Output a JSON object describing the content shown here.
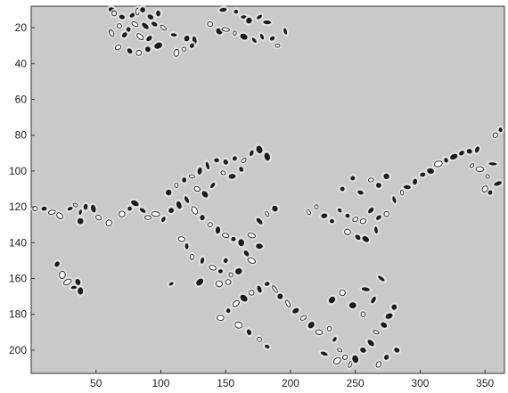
{
  "figure": {
    "x_ticks": [
      "50",
      "100",
      "150",
      "200",
      "250",
      "300",
      "350"
    ],
    "y_ticks": [
      "20",
      "40",
      "60",
      "80",
      "100",
      "120",
      "140",
      "160",
      "180",
      "200"
    ],
    "x_tick_values": [
      50,
      100,
      150,
      200,
      250,
      300,
      350
    ],
    "y_tick_values": [
      20,
      40,
      60,
      80,
      100,
      120,
      140,
      160,
      180,
      200
    ],
    "xlim": [
      0,
      365
    ],
    "ylim": [
      8,
      213
    ],
    "y_axis_inverted": true,
    "colors": {
      "background": "#c9c9c9",
      "dark_blob": "#1a1a1a",
      "light_blob": "#ffffff",
      "halo": "#e3e3e3",
      "frame": "#333333"
    },
    "blob_groups": [
      {
        "name": "top-left-cluster",
        "blobs": [
          [
            62,
            10,
            "d"
          ],
          [
            64,
            12,
            "l"
          ],
          [
            70,
            14,
            "d"
          ],
          [
            78,
            13,
            "d"
          ],
          [
            82,
            11,
            "l"
          ],
          [
            86,
            10,
            "d"
          ],
          [
            92,
            14,
            "d"
          ],
          [
            98,
            12,
            "d"
          ],
          [
            68,
            19,
            "l"
          ],
          [
            75,
            21,
            "d"
          ],
          [
            80,
            18,
            "l"
          ],
          [
            88,
            19,
            "d"
          ],
          [
            95,
            18,
            "d"
          ],
          [
            62,
            23,
            "l"
          ],
          [
            72,
            24,
            "d"
          ],
          [
            84,
            25,
            "l"
          ],
          [
            91,
            26,
            "d"
          ],
          [
            102,
            20,
            "l"
          ],
          [
            110,
            24,
            "d"
          ],
          [
            120,
            26,
            "d"
          ],
          [
            126,
            27,
            "d"
          ],
          [
            67,
            31,
            "l"
          ],
          [
            76,
            33,
            "d"
          ],
          [
            83,
            34,
            "l"
          ],
          [
            90,
            32,
            "d"
          ],
          [
            98,
            30,
            "d"
          ],
          [
            112,
            34,
            "l"
          ],
          [
            118,
            32,
            "l"
          ],
          [
            124,
            30,
            "d"
          ]
        ]
      },
      {
        "name": "top-middle-cluster",
        "blobs": [
          [
            148,
            10,
            "d"
          ],
          [
            158,
            11,
            "d"
          ],
          [
            164,
            14,
            "d"
          ],
          [
            168,
            16,
            "d"
          ],
          [
            176,
            14,
            "d"
          ],
          [
            182,
            17,
            "d"
          ],
          [
            138,
            18,
            "l"
          ],
          [
            145,
            22,
            "d"
          ],
          [
            150,
            21,
            "l"
          ],
          [
            157,
            23,
            "l"
          ],
          [
            164,
            25,
            "d"
          ],
          [
            172,
            27,
            "d"
          ],
          [
            178,
            25,
            "d"
          ],
          [
            186,
            26,
            "d"
          ],
          [
            190,
            30,
            "l"
          ],
          [
            196,
            22,
            "d"
          ]
        ]
      },
      {
        "name": "left-edge-cluster",
        "blobs": [
          [
            3,
            121,
            "l"
          ],
          [
            10,
            121,
            "d"
          ],
          [
            16,
            123,
            "l"
          ],
          [
            22,
            125,
            "l"
          ],
          [
            30,
            121,
            "d"
          ],
          [
            34,
            119,
            "l"
          ],
          [
            38,
            123,
            "d"
          ],
          [
            42,
            120,
            "d"
          ],
          [
            48,
            121,
            "d"
          ],
          [
            52,
            126,
            "l"
          ],
          [
            60,
            129,
            "l"
          ],
          [
            38,
            128,
            "d"
          ],
          [
            20,
            152,
            "d"
          ],
          [
            24,
            158,
            "l"
          ],
          [
            28,
            162,
            "l"
          ],
          [
            33,
            165,
            "d"
          ],
          [
            36,
            162,
            "d"
          ],
          [
            38,
            167,
            "d"
          ]
        ]
      },
      {
        "name": "center-left-cluster",
        "blobs": [
          [
            70,
            124,
            "l"
          ],
          [
            76,
            121,
            "d"
          ],
          [
            80,
            118,
            "d"
          ],
          [
            86,
            122,
            "d"
          ],
          [
            90,
            126,
            "l"
          ],
          [
            96,
            124,
            "l"
          ],
          [
            102,
            127,
            "d"
          ],
          [
            108,
            122,
            "d"
          ],
          [
            114,
            119,
            "d"
          ],
          [
            120,
            116,
            "d"
          ],
          [
            106,
            112,
            "d"
          ],
          [
            112,
            108,
            "l"
          ],
          [
            118,
            105,
            "d"
          ],
          [
            124,
            103,
            "l"
          ],
          [
            130,
            100,
            "d"
          ],
          [
            136,
            97,
            "d"
          ],
          [
            143,
            94,
            "d"
          ],
          [
            150,
            95,
            "d"
          ],
          [
            157,
            93,
            "d"
          ],
          [
            164,
            94,
            "l"
          ],
          [
            170,
            90,
            "d"
          ],
          [
            176,
            88,
            "d"
          ],
          [
            182,
            92,
            "d"
          ],
          [
            148,
            101,
            "l"
          ],
          [
            155,
            103,
            "d"
          ],
          [
            162,
            99,
            "d"
          ],
          [
            128,
            110,
            "l"
          ],
          [
            134,
            113,
            "d"
          ],
          [
            140,
            108,
            "d"
          ],
          [
            126,
            122,
            "l"
          ],
          [
            132,
            126,
            "d"
          ],
          [
            138,
            130,
            "l"
          ],
          [
            144,
            133,
            "d"
          ],
          [
            150,
            136,
            "l"
          ],
          [
            156,
            138,
            "d"
          ],
          [
            162,
            140,
            "d"
          ],
          [
            170,
            136,
            "l"
          ],
          [
            176,
            128,
            "d"
          ],
          [
            182,
            124,
            "l"
          ],
          [
            188,
            121,
            "d"
          ],
          [
            116,
            138,
            "l"
          ],
          [
            120,
            142,
            "d"
          ],
          [
            124,
            148,
            "l"
          ],
          [
            132,
            150,
            "d"
          ],
          [
            140,
            154,
            "l"
          ],
          [
            146,
            156,
            "d"
          ],
          [
            150,
            150,
            "d"
          ],
          [
            154,
            158,
            "l"
          ],
          [
            160,
            156,
            "d"
          ],
          [
            108,
            163,
            "d"
          ],
          [
            130,
            162,
            "d"
          ],
          [
            145,
            163,
            "l"
          ],
          [
            152,
            162,
            "l"
          ],
          [
            166,
            146,
            "d"
          ],
          [
            170,
            150,
            "l"
          ],
          [
            176,
            142,
            "d"
          ]
        ]
      },
      {
        "name": "right-center-cluster",
        "blobs": [
          [
            214,
            123,
            "l"
          ],
          [
            220,
            120,
            "l"
          ],
          [
            226,
            125,
            "d"
          ],
          [
            232,
            128,
            "d"
          ],
          [
            238,
            122,
            "d"
          ],
          [
            244,
            125,
            "d"
          ],
          [
            250,
            127,
            "l"
          ],
          [
            256,
            128,
            "l"
          ],
          [
            262,
            122,
            "d"
          ],
          [
            268,
            126,
            "d"
          ],
          [
            274,
            124,
            "l"
          ],
          [
            244,
            134,
            "l"
          ],
          [
            252,
            137,
            "d"
          ],
          [
            258,
            138,
            "d"
          ],
          [
            266,
            133,
            "d"
          ],
          [
            280,
            116,
            "d"
          ],
          [
            286,
            112,
            "l"
          ],
          [
            290,
            109,
            "d"
          ],
          [
            296,
            106,
            "d"
          ],
          [
            302,
            102,
            "d"
          ],
          [
            308,
            100,
            "d"
          ],
          [
            314,
            96,
            "l"
          ],
          [
            320,
            94,
            "d"
          ],
          [
            326,
            92,
            "d"
          ],
          [
            332,
            90,
            "d"
          ],
          [
            338,
            89,
            "d"
          ],
          [
            344,
            88,
            "d"
          ],
          [
            240,
            110,
            "d"
          ],
          [
            248,
            104,
            "d"
          ],
          [
            254,
            112,
            "d"
          ],
          [
            262,
            105,
            "l"
          ],
          [
            268,
            108,
            "d"
          ],
          [
            274,
            103,
            "d"
          ]
        ]
      },
      {
        "name": "right-edge-cluster",
        "blobs": [
          [
            340,
            97,
            "l"
          ],
          [
            346,
            99,
            "l"
          ],
          [
            352,
            103,
            "l"
          ],
          [
            356,
            96,
            "d"
          ],
          [
            358,
            80,
            "l"
          ],
          [
            362,
            77,
            "d"
          ],
          [
            354,
            112,
            "d"
          ],
          [
            350,
            110,
            "l"
          ],
          [
            360,
            107,
            "d"
          ]
        ]
      },
      {
        "name": "bottom-cluster",
        "blobs": [
          [
            146,
            182,
            "l"
          ],
          [
            152,
            178,
            "d"
          ],
          [
            158,
            174,
            "l"
          ],
          [
            164,
            171,
            "d"
          ],
          [
            170,
            168,
            "l"
          ],
          [
            176,
            166,
            "d"
          ],
          [
            182,
            163,
            "d"
          ],
          [
            188,
            166,
            "l"
          ],
          [
            192,
            170,
            "d"
          ],
          [
            198,
            174,
            "l"
          ],
          [
            204,
            178,
            "d"
          ],
          [
            210,
            182,
            "l"
          ],
          [
            216,
            186,
            "d"
          ],
          [
            222,
            190,
            "l"
          ],
          [
            160,
            186,
            "l"
          ],
          [
            168,
            190,
            "d"
          ],
          [
            176,
            194,
            "l"
          ],
          [
            182,
            198,
            "d"
          ],
          [
            230,
            188,
            "l"
          ],
          [
            234,
            194,
            "d"
          ],
          [
            238,
            200,
            "l"
          ],
          [
            242,
            204,
            "l"
          ],
          [
            246,
            208,
            "l"
          ],
          [
            250,
            205,
            "d"
          ],
          [
            256,
            200,
            "d"
          ],
          [
            262,
            196,
            "d"
          ],
          [
            266,
            190,
            "l"
          ],
          [
            272,
            186,
            "d"
          ],
          [
            276,
            181,
            "d"
          ],
          [
            280,
            176,
            "d"
          ],
          [
            232,
            172,
            "d"
          ],
          [
            240,
            168,
            "l"
          ],
          [
            248,
            175,
            "d"
          ],
          [
            256,
            180,
            "l"
          ],
          [
            258,
            166,
            "d"
          ],
          [
            264,
            172,
            "d"
          ],
          [
            270,
            160,
            "d"
          ],
          [
            226,
            202,
            "d"
          ],
          [
            236,
            206,
            "l"
          ],
          [
            268,
            208,
            "l"
          ],
          [
            274,
            204,
            "d"
          ],
          [
            282,
            200,
            "d"
          ]
        ]
      }
    ]
  }
}
